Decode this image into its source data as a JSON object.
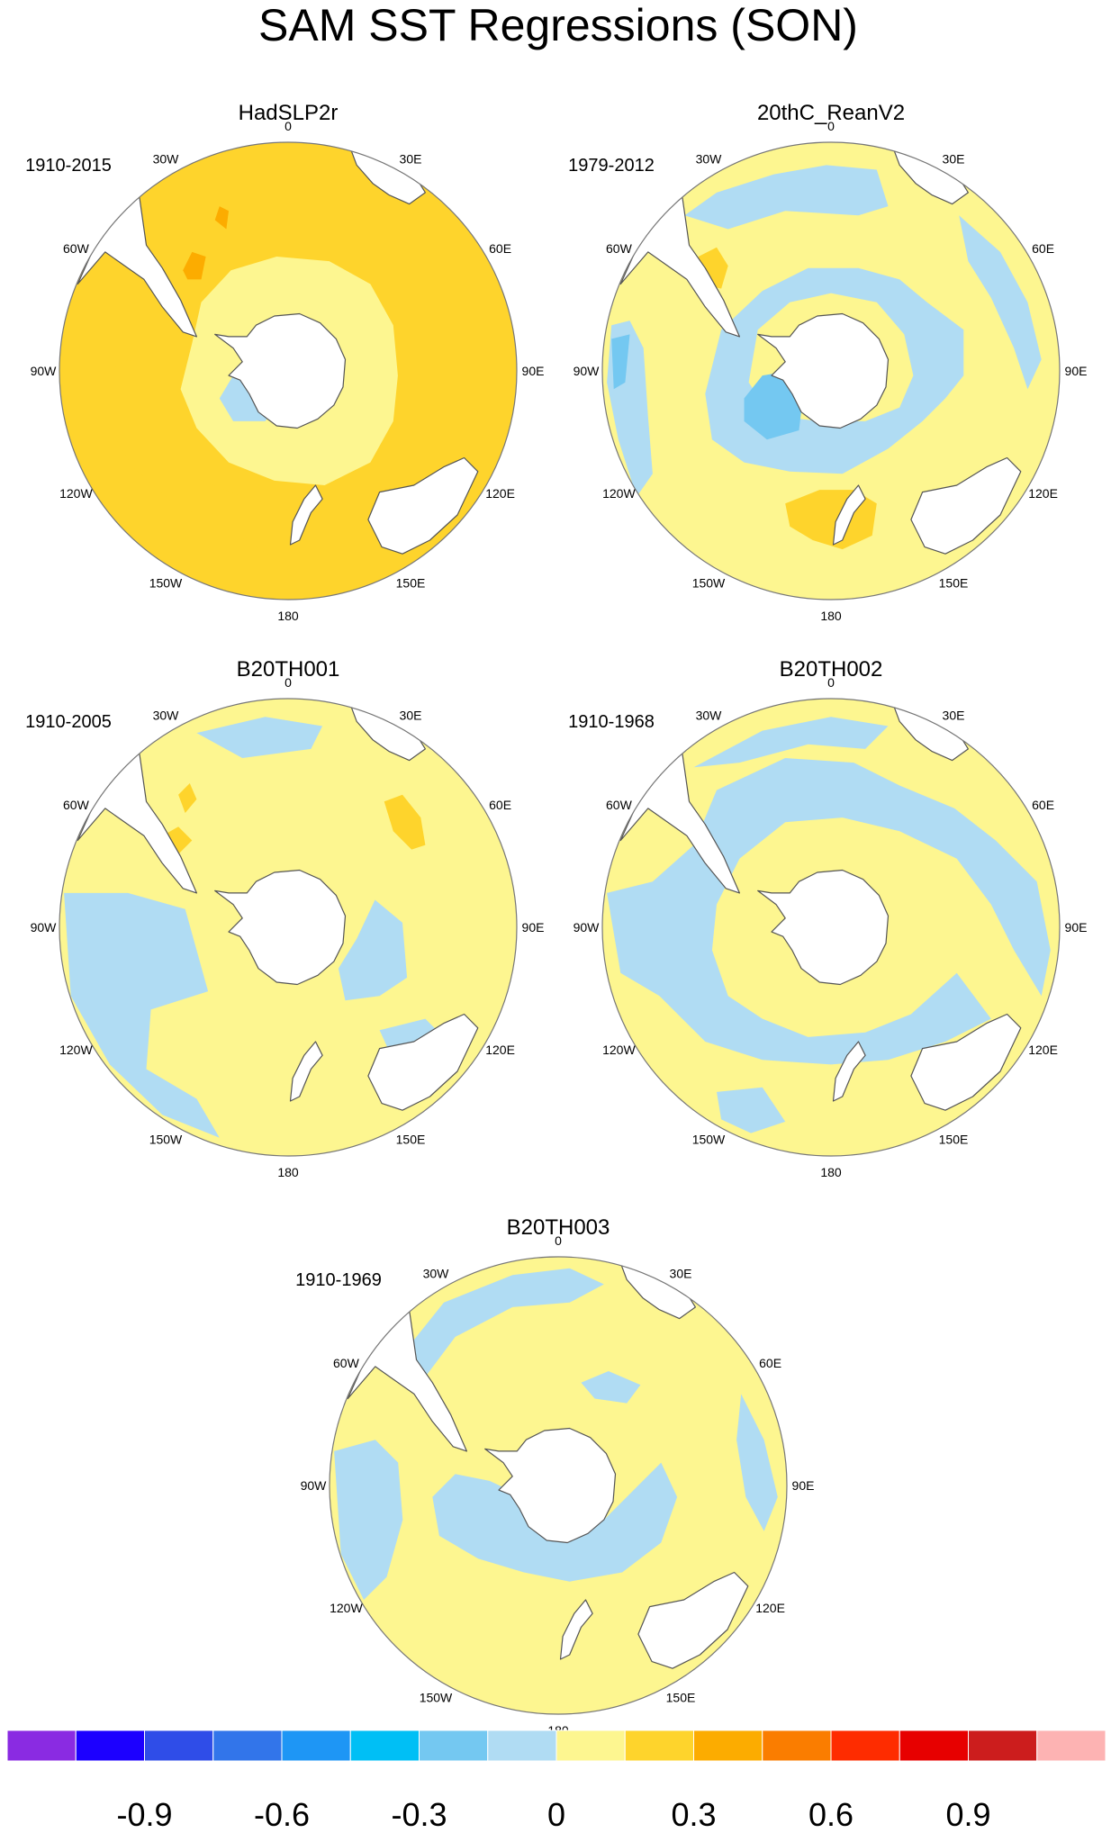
{
  "figure": {
    "title": "SAM SST Regressions (SON)"
  },
  "colors": {
    "land": "#ffffff",
    "coast": "#555555",
    "border": "#777777",
    "n03": "#b0dcf3",
    "n06": "#74c8f1",
    "n09": "#3fa6ee",
    "p00": "#fdf690",
    "p03": "#fed42c",
    "p06": "#fcac00",
    "p09": "#fa7d00"
  },
  "longitude_labels": [
    "0",
    "30E",
    "60E",
    "90E",
    "120E",
    "150E",
    "180",
    "150W",
    "120W",
    "90W",
    "60W",
    "30W"
  ],
  "panels": [
    {
      "title": "HadSLP2r",
      "period": "1910-2015"
    },
    {
      "title": "20thC_ReanV2",
      "period": "1979-2012"
    },
    {
      "title": "B20TH001",
      "period": "1910-2005"
    },
    {
      "title": "B20TH002",
      "period": "1910-1968"
    },
    {
      "title": "B20TH003",
      "period": "1910-1969"
    }
  ],
  "colorbar": {
    "colors": [
      "#8a2be2",
      "#1c00ff",
      "#2f4de8",
      "#3275ea",
      "#1e96f5",
      "#00bff5",
      "#74c8f1",
      "#b0dcf3",
      "#fdf690",
      "#fed42c",
      "#fcac00",
      "#fa7d00",
      "#fe2c00",
      "#e70000",
      "#cc1d1d",
      "#fdb3b3"
    ],
    "labels": [
      "-0.9",
      "-0.6",
      "-0.3",
      "0",
      "0.3",
      "0.6",
      "0.9"
    ]
  }
}
